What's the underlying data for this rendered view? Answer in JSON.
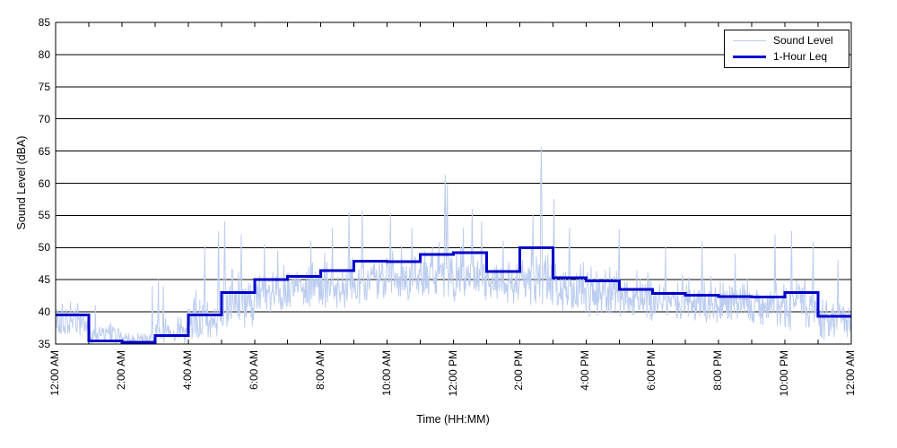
{
  "chart_data": {
    "type": "line",
    "title": "",
    "xlabel": "Time (HH:MM)",
    "ylabel": "Sound Level (dBA)",
    "xlim_hours": [
      0,
      24
    ],
    "ylim": [
      35,
      85
    ],
    "grid": "horizontal-solid",
    "legend_position": "top-right",
    "y_tick_values": [
      35,
      40,
      45,
      50,
      55,
      60,
      65,
      70,
      75,
      80,
      85
    ],
    "x_tick_labels": [
      "12:00 AM",
      "2:00 AM",
      "4:00 AM",
      "6:00 AM",
      "8:00 AM",
      "10:00 AM",
      "12:00 PM",
      "2:00 PM",
      "4:00 PM",
      "6:00 PM",
      "8:00 PM",
      "10:00 PM",
      "12:00 AM"
    ],
    "x_tick_step_hours": 2,
    "minor_tick_every_hours": 1,
    "series": [
      {
        "name": "Sound Level",
        "type": "noisy_line",
        "color": "#bccdf0",
        "stroke_width": 1,
        "points_per_hour": 60,
        "seed": 20,
        "hourly_band": [
          [
            36,
            42
          ],
          [
            34.9,
            38.5
          ],
          [
            34.9,
            37
          ],
          [
            35,
            39.5
          ],
          [
            35.5,
            43.5
          ],
          [
            37.5,
            47
          ],
          [
            39.5,
            48
          ],
          [
            40.5,
            48.5
          ],
          [
            40,
            49.5
          ],
          [
            41,
            50
          ],
          [
            41.5,
            50.5
          ],
          [
            42,
            51
          ],
          [
            41.5,
            51.5
          ],
          [
            41,
            50
          ],
          [
            41,
            50.5
          ],
          [
            39.5,
            49
          ],
          [
            39,
            48.5
          ],
          [
            38.5,
            47.5
          ],
          [
            38.5,
            46.5
          ],
          [
            38,
            46
          ],
          [
            38,
            46
          ],
          [
            37.5,
            45.5
          ],
          [
            37,
            46
          ],
          [
            35.5,
            42.5
          ]
        ],
        "spikes": [
          [
            1.2,
            41
          ],
          [
            2.92,
            44
          ],
          [
            3.1,
            45
          ],
          [
            3.25,
            44
          ],
          [
            4.5,
            50
          ],
          [
            4.92,
            52.5
          ],
          [
            5.1,
            54
          ],
          [
            5.6,
            52
          ],
          [
            6.3,
            50.5
          ],
          [
            6.7,
            49.5
          ],
          [
            7.7,
            51
          ],
          [
            8.35,
            53
          ],
          [
            8.85,
            55.5
          ],
          [
            9.25,
            55.8
          ],
          [
            10.1,
            55.2
          ],
          [
            10.75,
            53
          ],
          [
            11.75,
            61.3
          ],
          [
            11.82,
            59.7
          ],
          [
            12.3,
            53
          ],
          [
            12.57,
            56
          ],
          [
            12.85,
            54
          ],
          [
            13.5,
            51
          ],
          [
            14.4,
            55
          ],
          [
            14.65,
            65.6
          ],
          [
            15.03,
            57.5
          ],
          [
            15.5,
            53
          ],
          [
            17.0,
            52.8
          ],
          [
            18.4,
            50
          ],
          [
            19.5,
            50.9
          ],
          [
            20.5,
            49
          ],
          [
            21.7,
            52
          ],
          [
            22.2,
            52.5
          ],
          [
            22.85,
            50.9
          ],
          [
            23.6,
            48
          ]
        ]
      },
      {
        "name": "1-Hour Leq",
        "type": "step",
        "color": "#0000cc",
        "stroke_width": 3,
        "hourly_leq": [
          39.5,
          35.5,
          35.3,
          36.3,
          39.5,
          43,
          45,
          45.5,
          46.4,
          47.9,
          47.8,
          48.9,
          49.2,
          46.3,
          50,
          45.3,
          44.8,
          43.5,
          42.9,
          42.6,
          42.4,
          42.3,
          43,
          39.3
        ]
      }
    ],
    "colors": {
      "axis": "#000000",
      "grid": "#000000",
      "plot_background": "#ffffff"
    }
  }
}
